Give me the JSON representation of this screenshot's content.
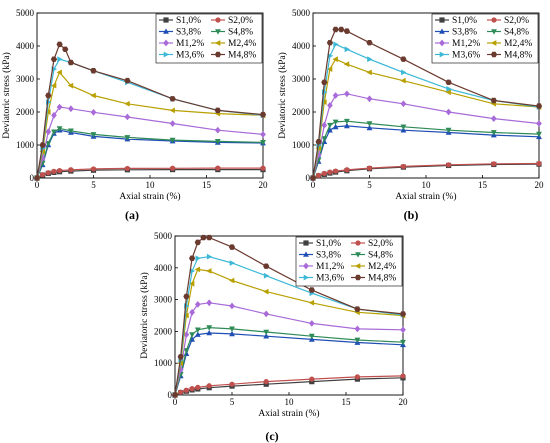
{
  "figure": {
    "panel_labels": [
      "(a)",
      "(b)",
      "(c)"
    ]
  },
  "chart_data": [
    {
      "type": "line",
      "panel_label": "(a)",
      "xlabel": "Axial strain (%)",
      "ylabel": "Deviatoric stress (kPa)",
      "xlim": [
        0,
        20
      ],
      "ylim": [
        0,
        5000
      ],
      "xticks": [
        0,
        5,
        10,
        15,
        20
      ],
      "yticks": [
        0,
        1000,
        2000,
        3000,
        4000,
        5000
      ],
      "legend": "top-right",
      "series": [
        {
          "name": "S1,0%",
          "color": "#404040",
          "marker": "square",
          "x": [
            0,
            0.5,
            1,
            1.5,
            2,
            3,
            5,
            8,
            12,
            16,
            20
          ],
          "y": [
            0,
            90,
            140,
            170,
            190,
            210,
            235,
            250,
            255,
            255,
            255
          ]
        },
        {
          "name": "S2,0%",
          "color": "#c0504d",
          "marker": "circle",
          "x": [
            0,
            0.5,
            1,
            1.5,
            2,
            3,
            5,
            8,
            12,
            16,
            20
          ],
          "y": [
            0,
            100,
            160,
            200,
            225,
            250,
            275,
            290,
            295,
            300,
            300
          ]
        },
        {
          "name": "S3,8%",
          "color": "#1f4eb4",
          "marker": "triangle-up",
          "x": [
            0,
            0.5,
            1,
            1.5,
            2,
            3,
            5,
            8,
            12,
            16,
            20
          ],
          "y": [
            0,
            400,
            1000,
            1350,
            1450,
            1380,
            1260,
            1180,
            1120,
            1080,
            1060
          ]
        },
        {
          "name": "S4,8%",
          "color": "#2e8b57",
          "marker": "triangle-down",
          "x": [
            0,
            0.5,
            1,
            1.5,
            2,
            3,
            5,
            8,
            12,
            16,
            20
          ],
          "y": [
            0,
            450,
            1050,
            1400,
            1500,
            1430,
            1320,
            1230,
            1150,
            1110,
            1080
          ]
        },
        {
          "name": "M1,2%",
          "color": "#a86bd8",
          "marker": "diamond",
          "x": [
            0,
            0.5,
            1,
            1.5,
            2,
            3,
            5,
            8,
            12,
            16,
            20
          ],
          "y": [
            0,
            600,
            1400,
            1900,
            2150,
            2100,
            1990,
            1850,
            1650,
            1450,
            1320
          ]
        },
        {
          "name": "M2,4%",
          "color": "#b8a000",
          "marker": "triangle-left",
          "x": [
            0,
            0.5,
            1,
            1.5,
            2,
            3,
            5,
            8,
            12,
            16,
            20
          ],
          "y": [
            0,
            800,
            2000,
            2800,
            3200,
            2800,
            2500,
            2250,
            2050,
            1950,
            1900
          ]
        },
        {
          "name": "M3,6%",
          "color": "#3bb8d6",
          "marker": "triangle-right",
          "x": [
            0,
            0.5,
            1,
            1.5,
            2,
            3,
            5,
            8,
            12,
            16,
            20
          ],
          "y": [
            0,
            900,
            2300,
            3300,
            3600,
            3500,
            3250,
            2900,
            2400,
            2050,
            1900
          ]
        },
        {
          "name": "M4,8%",
          "color": "#6b3a2f",
          "marker": "hexagon",
          "x": [
            0,
            0.5,
            1,
            1.5,
            2,
            2.5,
            3,
            5,
            8,
            12,
            16,
            20
          ],
          "y": [
            0,
            1000,
            2500,
            3600,
            4050,
            3900,
            3500,
            3250,
            2950,
            2400,
            2050,
            1920
          ]
        }
      ]
    },
    {
      "type": "line",
      "panel_label": "(b)",
      "xlabel": "Axial strain (%)",
      "ylabel": "Deviatoric stress (kPa)",
      "xlim": [
        0,
        20
      ],
      "ylim": [
        0,
        5000
      ],
      "xticks": [
        0,
        5,
        10,
        15,
        20
      ],
      "yticks": [
        0,
        1000,
        2000,
        3000,
        4000,
        5000
      ],
      "legend": "top-right",
      "series": [
        {
          "name": "S1,0%",
          "color": "#404040",
          "marker": "square",
          "x": [
            0,
            0.5,
            1,
            1.5,
            2,
            3,
            5,
            8,
            12,
            16,
            20
          ],
          "y": [
            0,
            60,
            110,
            150,
            180,
            220,
            280,
            330,
            380,
            410,
            420
          ]
        },
        {
          "name": "S2,0%",
          "color": "#c0504d",
          "marker": "circle",
          "x": [
            0,
            0.5,
            1,
            1.5,
            2,
            3,
            5,
            8,
            12,
            16,
            20
          ],
          "y": [
            0,
            80,
            140,
            180,
            210,
            250,
            300,
            350,
            400,
            430,
            440
          ]
        },
        {
          "name": "S3,8%",
          "color": "#1f4eb4",
          "marker": "triangle-up",
          "x": [
            0,
            0.5,
            1,
            1.5,
            2,
            3,
            5,
            8,
            12,
            16,
            20
          ],
          "y": [
            0,
            500,
            1100,
            1450,
            1550,
            1580,
            1520,
            1450,
            1380,
            1300,
            1250
          ]
        },
        {
          "name": "S4,8%",
          "color": "#2e8b57",
          "marker": "triangle-down",
          "x": [
            0,
            0.5,
            1,
            1.5,
            2,
            3,
            5,
            8,
            12,
            16,
            20
          ],
          "y": [
            0,
            550,
            1200,
            1600,
            1700,
            1720,
            1650,
            1550,
            1450,
            1380,
            1330
          ]
        },
        {
          "name": "M1,2%",
          "color": "#a86bd8",
          "marker": "diamond",
          "x": [
            0,
            0.5,
            1,
            1.5,
            2,
            3,
            5,
            8,
            12,
            16,
            20
          ],
          "y": [
            0,
            700,
            1600,
            2200,
            2500,
            2550,
            2400,
            2250,
            2000,
            1800,
            1650
          ]
        },
        {
          "name": "M2,4%",
          "color": "#b8a000",
          "marker": "triangle-left",
          "x": [
            0,
            0.5,
            1,
            1.5,
            2,
            3,
            5,
            8,
            12,
            16,
            20
          ],
          "y": [
            0,
            900,
            2300,
            3300,
            3600,
            3450,
            3200,
            2950,
            2600,
            2250,
            2150
          ]
        },
        {
          "name": "M3,6%",
          "color": "#3bb8d6",
          "marker": "triangle-right",
          "x": [
            0,
            0.5,
            1,
            1.5,
            2,
            3,
            5,
            8,
            12,
            16,
            20
          ],
          "y": [
            0,
            1000,
            2600,
            3700,
            4050,
            3900,
            3600,
            3200,
            2700,
            2350,
            2150
          ]
        },
        {
          "name": "M4,8%",
          "color": "#6b3a2f",
          "marker": "hexagon",
          "x": [
            0,
            0.5,
            1,
            1.5,
            2,
            2.5,
            3,
            5,
            8,
            12,
            16,
            20
          ],
          "y": [
            0,
            1100,
            2900,
            4100,
            4500,
            4500,
            4450,
            4100,
            3600,
            2900,
            2350,
            2180
          ]
        }
      ]
    },
    {
      "type": "line",
      "panel_label": "(c)",
      "xlabel": "Axial strain (%)",
      "ylabel": "Deviatoric stress (kPa)",
      "xlim": [
        0,
        20
      ],
      "ylim": [
        0,
        5000
      ],
      "xticks": [
        0,
        5,
        10,
        15,
        20
      ],
      "yticks": [
        0,
        1000,
        2000,
        3000,
        4000,
        5000
      ],
      "legend": "top-right",
      "series": [
        {
          "name": "S1,0%",
          "color": "#404040",
          "marker": "square",
          "x": [
            0,
            0.5,
            1,
            1.5,
            2,
            3,
            5,
            8,
            12,
            16,
            20
          ],
          "y": [
            0,
            70,
            120,
            160,
            190,
            230,
            280,
            340,
            420,
            500,
            540
          ]
        },
        {
          "name": "S2,0%",
          "color": "#c0504d",
          "marker": "circle",
          "x": [
            0,
            0.5,
            1,
            1.5,
            2,
            3,
            5,
            8,
            12,
            16,
            20
          ],
          "y": [
            0,
            90,
            150,
            200,
            240,
            290,
            340,
            420,
            500,
            570,
            600
          ]
        },
        {
          "name": "S3,8%",
          "color": "#1f4eb4",
          "marker": "triangle-up",
          "x": [
            0,
            0.5,
            1,
            1.5,
            2,
            3,
            5,
            8,
            12,
            16,
            20
          ],
          "y": [
            0,
            600,
            1300,
            1750,
            1900,
            1950,
            1920,
            1850,
            1750,
            1650,
            1580
          ]
        },
        {
          "name": "S4,8%",
          "color": "#2e8b57",
          "marker": "triangle-down",
          "x": [
            0,
            0.5,
            1,
            1.5,
            2,
            3,
            5,
            8,
            12,
            16,
            20
          ],
          "y": [
            0,
            650,
            1400,
            1900,
            2050,
            2120,
            2080,
            1980,
            1850,
            1730,
            1660
          ]
        },
        {
          "name": "M1,2%",
          "color": "#a86bd8",
          "marker": "diamond",
          "x": [
            0,
            0.5,
            1,
            1.5,
            2,
            3,
            5,
            8,
            12,
            16,
            20
          ],
          "y": [
            0,
            800,
            1900,
            2600,
            2850,
            2900,
            2800,
            2550,
            2250,
            2080,
            2050
          ]
        },
        {
          "name": "M2,4%",
          "color": "#b8a000",
          "marker": "triangle-left",
          "x": [
            0,
            0.5,
            1,
            1.5,
            2,
            3,
            5,
            8,
            12,
            16,
            20
          ],
          "y": [
            0,
            1000,
            2500,
            3500,
            3950,
            3900,
            3600,
            3250,
            2900,
            2600,
            2500
          ]
        },
        {
          "name": "M3,6%",
          "color": "#3bb8d6",
          "marker": "triangle-right",
          "x": [
            0,
            0.5,
            1,
            1.5,
            2,
            3,
            5,
            8,
            12,
            16,
            20
          ],
          "y": [
            0,
            1100,
            2800,
            3900,
            4300,
            4350,
            4150,
            3750,
            3200,
            2700,
            2520
          ]
        },
        {
          "name": "M4,8%",
          "color": "#6b3a2f",
          "marker": "hexagon",
          "x": [
            0,
            0.5,
            1,
            1.5,
            2,
            2.5,
            3,
            5,
            8,
            12,
            16,
            20
          ],
          "y": [
            0,
            1200,
            3100,
            4300,
            4800,
            4950,
            4950,
            4650,
            4050,
            3300,
            2700,
            2550
          ]
        }
      ]
    }
  ]
}
